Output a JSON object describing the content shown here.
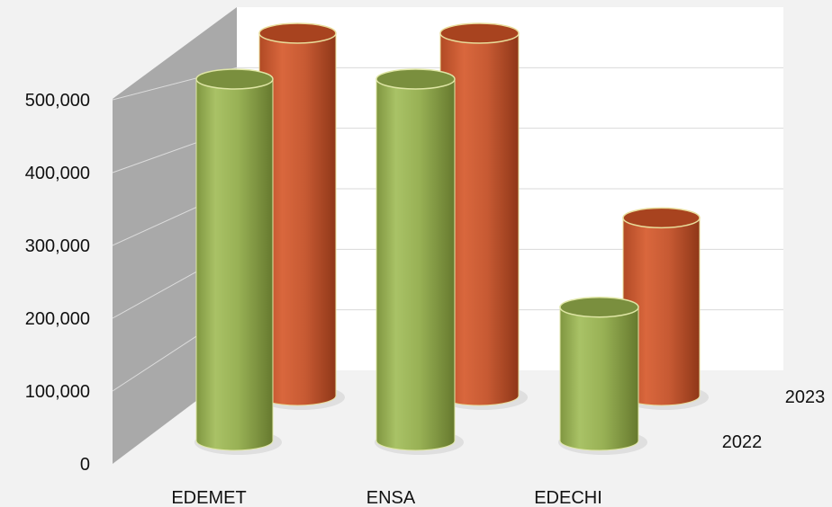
{
  "chart_data": {
    "type": "bar",
    "style": "3d-cylinder",
    "categories": [
      "EDEMET",
      "ENSA",
      "EDECHI"
    ],
    "series": [
      {
        "name": "2022",
        "values": [
          515000,
          515000,
          190000
        ],
        "color": "#9bb557"
      },
      {
        "name": "2023",
        "values": [
          520000,
          520000,
          255000
        ],
        "color": "#d0603a"
      }
    ],
    "y_ticks": [
      "0",
      "100,000",
      "200,000",
      "300,000",
      "400,000",
      "500,000"
    ],
    "ylim": [
      0,
      600000
    ],
    "grid": true,
    "wall_color": "#a9a9a9",
    "title": "",
    "xlabel": "",
    "ylabel": ""
  }
}
